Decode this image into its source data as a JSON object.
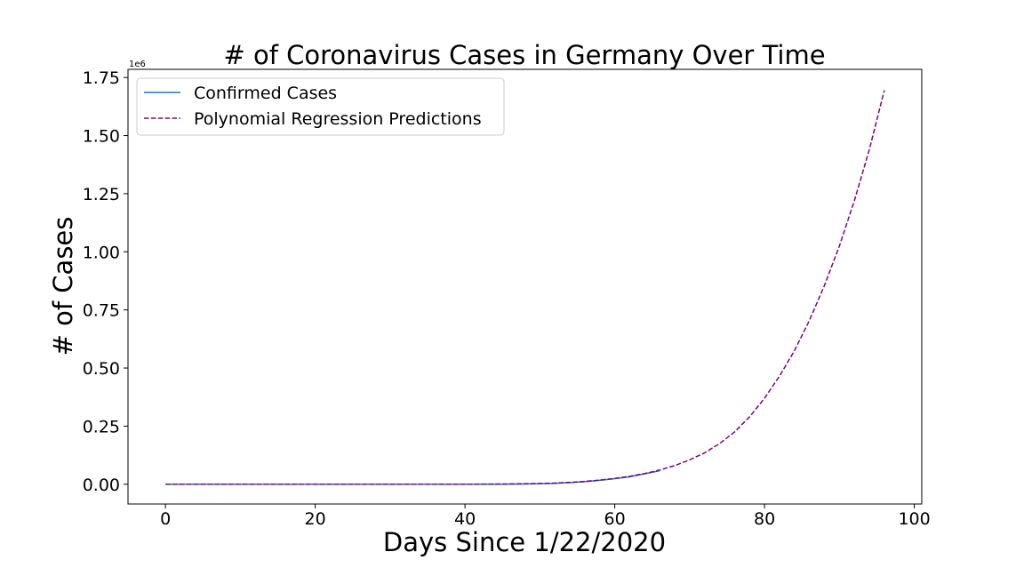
{
  "chart_data": {
    "type": "line",
    "title": "# of Coronavirus Cases in Germany Over Time",
    "xlabel": "Days Since 1/22/2020",
    "ylabel": "# of Cases",
    "y_offset_label": "1e6",
    "xlim": [
      -5,
      101
    ],
    "ylim": [
      -0.085,
      1.785
    ],
    "x_ticks": [
      0,
      20,
      40,
      60,
      80,
      100
    ],
    "x_tick_labels": [
      "0",
      "20",
      "40",
      "60",
      "80",
      "100"
    ],
    "y_ticks": [
      0.0,
      0.25,
      0.5,
      0.75,
      1.0,
      1.25,
      1.5,
      1.75
    ],
    "y_tick_labels": [
      "0.00",
      "0.25",
      "0.50",
      "0.75",
      "1.00",
      "1.25",
      "1.50",
      "1.75"
    ],
    "grid": false,
    "legend_position": "top-left",
    "series": [
      {
        "name": "Confirmed Cases",
        "color": "#1f77b4",
        "dash": "solid",
        "x": [
          0,
          10,
          20,
          30,
          35,
          40,
          45,
          48,
          50,
          52,
          54,
          56,
          58,
          60,
          62,
          64,
          66
        ],
        "y": [
          0.0,
          0.0,
          0.0,
          0.0,
          0.0,
          0.0,
          0.0,
          0.001,
          0.0025,
          0.004,
          0.007,
          0.011,
          0.017,
          0.024,
          0.032,
          0.045,
          0.058
        ]
      },
      {
        "name": "Polynomial Regression Predictions",
        "color": "#800080",
        "dash": "dashed",
        "x": [
          0,
          10,
          20,
          30,
          35,
          40,
          45,
          50,
          52,
          54,
          56,
          58,
          60,
          62,
          64,
          66,
          68,
          70,
          72,
          74,
          76,
          78,
          80,
          82,
          84,
          86,
          88,
          90,
          92,
          94,
          96
        ],
        "y": [
          0.0,
          0.0,
          0.0,
          0.0,
          0.0,
          0.0,
          0.001,
          0.003,
          0.005,
          0.008,
          0.012,
          0.018,
          0.025,
          0.034,
          0.046,
          0.061,
          0.08,
          0.105,
          0.135,
          0.175,
          0.225,
          0.29,
          0.37,
          0.465,
          0.575,
          0.705,
          0.855,
          1.025,
          1.22,
          1.44,
          1.695
        ]
      }
    ]
  }
}
